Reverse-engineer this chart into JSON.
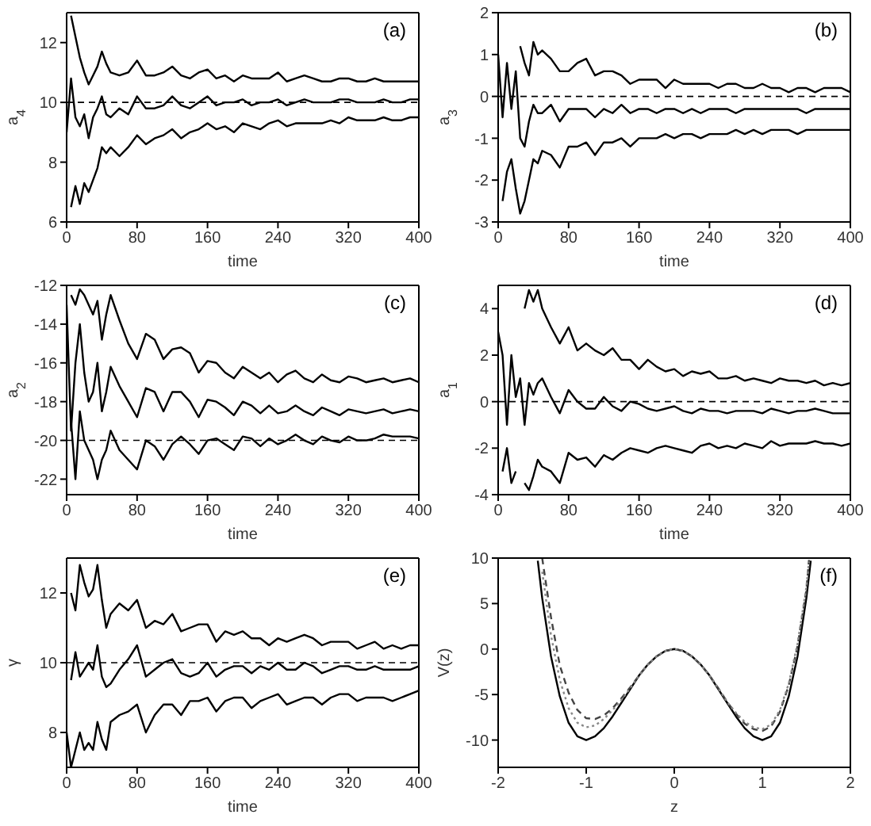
{
  "chart_data": [
    {
      "type": "line",
      "xlabel": "time",
      "ylabel": "a$_{4}$",
      "annotations": [
        "(a)"
      ],
      "xlim": [
        0,
        400
      ],
      "xticks": [
        0,
        80,
        160,
        240,
        320,
        400
      ],
      "ylim": [
        6,
        13
      ],
      "yticks": [
        6,
        8,
        10,
        12
      ],
      "ref_lines": [
        {
          "axis": "y",
          "value": 10,
          "line_style": "dashed",
          "color": "#000000"
        }
      ],
      "x": [
        0,
        5,
        10,
        15,
        20,
        25,
        30,
        35,
        40,
        45,
        50,
        60,
        70,
        80,
        90,
        100,
        110,
        120,
        130,
        140,
        150,
        160,
        170,
        180,
        190,
        200,
        210,
        220,
        230,
        240,
        250,
        260,
        270,
        280,
        290,
        300,
        310,
        320,
        330,
        340,
        350,
        360,
        370,
        380,
        390,
        400
      ],
      "series": [
        {
          "color": "#000000",
          "values": [
            null,
            12.9,
            12.2,
            11.5,
            11.0,
            10.6,
            10.9,
            11.2,
            11.7,
            11.3,
            11.0,
            10.9,
            11.0,
            11.4,
            10.9,
            10.9,
            11.0,
            11.2,
            10.9,
            10.8,
            11.0,
            11.1,
            10.8,
            10.9,
            10.7,
            10.9,
            10.8,
            10.8,
            10.8,
            11.0,
            10.7,
            10.8,
            10.9,
            10.8,
            10.7,
            10.7,
            10.8,
            10.8,
            10.7,
            10.7,
            10.8,
            10.7,
            10.7,
            10.7,
            10.7,
            10.7
          ]
        },
        {
          "color": "#000000",
          "values": [
            9.0,
            10.8,
            9.5,
            9.2,
            9.6,
            8.8,
            9.5,
            9.8,
            10.2,
            9.6,
            9.5,
            9.8,
            9.6,
            10.2,
            9.8,
            9.8,
            9.9,
            10.2,
            9.9,
            9.8,
            10.0,
            10.2,
            9.9,
            10.0,
            10.0,
            10.1,
            9.9,
            10.0,
            10.0,
            10.1,
            9.9,
            10.0,
            10.1,
            10.0,
            10.0,
            10.0,
            10.1,
            10.1,
            10.0,
            10.0,
            10.0,
            10.1,
            10.0,
            10.0,
            10.1,
            10.1
          ]
        },
        {
          "color": "#000000",
          "values": [
            null,
            6.5,
            7.2,
            6.6,
            7.3,
            7.0,
            7.4,
            7.8,
            8.5,
            8.3,
            8.5,
            8.2,
            8.5,
            8.9,
            8.6,
            8.8,
            8.9,
            9.1,
            8.8,
            9.0,
            9.1,
            9.3,
            9.1,
            9.2,
            9.0,
            9.3,
            9.2,
            9.1,
            9.3,
            9.4,
            9.2,
            9.3,
            9.3,
            9.3,
            9.3,
            9.4,
            9.3,
            9.5,
            9.4,
            9.4,
            9.4,
            9.5,
            9.4,
            9.4,
            9.5,
            9.5
          ]
        }
      ]
    },
    {
      "type": "line",
      "xlabel": "time",
      "ylabel": "a$_{3}$",
      "annotations": [
        "(b)"
      ],
      "xlim": [
        0,
        400
      ],
      "xticks": [
        0,
        80,
        160,
        240,
        320,
        400
      ],
      "ylim": [
        -3,
        2
      ],
      "yticks": [
        -3,
        -2,
        -1,
        0,
        1,
        2
      ],
      "ref_lines": [
        {
          "axis": "y",
          "value": 0,
          "line_style": "dashed",
          "color": "#000000"
        }
      ],
      "x": [
        0,
        5,
        10,
        15,
        20,
        25,
        30,
        35,
        40,
        45,
        50,
        60,
        70,
        80,
        90,
        100,
        110,
        120,
        130,
        140,
        150,
        160,
        170,
        180,
        190,
        200,
        210,
        220,
        230,
        240,
        250,
        260,
        270,
        280,
        290,
        300,
        310,
        320,
        330,
        340,
        350,
        360,
        370,
        380,
        390,
        400
      ],
      "series": [
        {
          "color": "#000000",
          "values": [
            null,
            null,
            null,
            null,
            null,
            1.2,
            0.8,
            0.5,
            1.3,
            1.0,
            1.1,
            0.9,
            0.6,
            0.6,
            0.8,
            0.9,
            0.5,
            0.6,
            0.6,
            0.5,
            0.3,
            0.4,
            0.4,
            0.4,
            0.2,
            0.4,
            0.3,
            0.3,
            0.3,
            0.3,
            0.2,
            0.3,
            0.3,
            0.2,
            0.2,
            0.3,
            0.2,
            0.2,
            0.1,
            0.2,
            0.2,
            0.1,
            0.2,
            0.2,
            0.2,
            0.1
          ]
        },
        {
          "color": "#000000",
          "values": [
            1,
            -0.5,
            0.8,
            -0.3,
            0.6,
            -1.0,
            -1.2,
            -0.6,
            -0.2,
            -0.4,
            -0.4,
            -0.2,
            -0.6,
            -0.3,
            -0.3,
            -0.3,
            -0.5,
            -0.3,
            -0.4,
            -0.2,
            -0.4,
            -0.3,
            -0.3,
            -0.4,
            -0.3,
            -0.3,
            -0.4,
            -0.3,
            -0.4,
            -0.3,
            -0.3,
            -0.3,
            -0.4,
            -0.3,
            -0.3,
            -0.3,
            -0.3,
            -0.3,
            -0.3,
            -0.3,
            -0.4,
            -0.3,
            -0.3,
            -0.3,
            -0.3,
            -0.3
          ]
        },
        {
          "color": "#000000",
          "values": [
            null,
            -2.5,
            -1.8,
            -1.5,
            -2.2,
            -2.8,
            -2.5,
            -2.0,
            -1.5,
            -1.6,
            -1.3,
            -1.4,
            -1.7,
            -1.2,
            -1.2,
            -1.1,
            -1.4,
            -1.1,
            -1.1,
            -1.0,
            -1.2,
            -1.0,
            -1.0,
            -1.0,
            -0.9,
            -1.0,
            -0.9,
            -0.9,
            -1.0,
            -0.9,
            -0.9,
            -0.9,
            -0.8,
            -0.9,
            -0.8,
            -0.9,
            -0.8,
            -0.8,
            -0.8,
            -0.9,
            -0.8,
            -0.8,
            -0.8,
            -0.8,
            -0.8,
            -0.8
          ]
        }
      ]
    },
    {
      "type": "line",
      "xlabel": "time",
      "ylabel": "a$_{2}$",
      "annotations": [
        "(c)"
      ],
      "xlim": [
        0,
        400
      ],
      "xticks": [
        0,
        80,
        160,
        240,
        320,
        400
      ],
      "ylim": [
        -22.8,
        -12
      ],
      "yticks": [
        -22,
        -20,
        -18,
        -16,
        -14,
        -12
      ],
      "ref_lines": [
        {
          "axis": "y",
          "value": -20,
          "line_style": "dashed",
          "color": "#000000"
        }
      ],
      "x": [
        0,
        5,
        10,
        15,
        20,
        25,
        30,
        35,
        40,
        45,
        50,
        60,
        70,
        80,
        90,
        100,
        110,
        120,
        130,
        140,
        150,
        160,
        170,
        180,
        190,
        200,
        210,
        220,
        230,
        240,
        250,
        260,
        270,
        280,
        290,
        300,
        310,
        320,
        330,
        340,
        350,
        360,
        370,
        380,
        390,
        400
      ],
      "series": [
        {
          "color": "#000000",
          "values": [
            null,
            -12.5,
            -13,
            -12.2,
            -12.5,
            -13,
            -13.5,
            -12.8,
            -14.8,
            -13.5,
            -12.5,
            -13.8,
            -15,
            -15.8,
            -14.5,
            -14.8,
            -15.8,
            -15.3,
            -15.2,
            -15.5,
            -16.5,
            -15.9,
            -16.0,
            -16.5,
            -16.8,
            -16.2,
            -16.5,
            -16.8,
            -16.5,
            -17.0,
            -16.6,
            -16.4,
            -16.8,
            -17.0,
            -16.6,
            -16.9,
            -17.0,
            -16.7,
            -16.8,
            -17.0,
            -16.9,
            -16.8,
            -17.0,
            -16.9,
            -16.8,
            -17.0
          ]
        },
        {
          "color": "#000000",
          "values": [
            -13,
            -19.5,
            -16,
            -14,
            -16.5,
            -18,
            -17.5,
            -16,
            -18.5,
            -17.5,
            -16.2,
            -17.2,
            -18,
            -18.8,
            -17.3,
            -17.5,
            -18.5,
            -17.5,
            -17.5,
            -18,
            -18.8,
            -17.9,
            -18.0,
            -18.3,
            -18.7,
            -18.0,
            -18.2,
            -18.6,
            -18.2,
            -18.6,
            -18.5,
            -18.2,
            -18.5,
            -18.7,
            -18.3,
            -18.5,
            -18.7,
            -18.4,
            -18.5,
            -18.6,
            -18.5,
            -18.4,
            -18.6,
            -18.5,
            -18.4,
            -18.5
          ]
        },
        {
          "color": "#000000",
          "values": [
            null,
            -19,
            -22,
            -18.5,
            -20,
            -20.5,
            -21,
            -22,
            -21,
            -20.5,
            -19.5,
            -20.5,
            -21.0,
            -21.5,
            -20.0,
            -20.3,
            -21.0,
            -20.2,
            -19.8,
            -20.2,
            -20.7,
            -20.0,
            -19.9,
            -20.2,
            -20.5,
            -19.8,
            -19.9,
            -20.3,
            -19.9,
            -20.2,
            -20.0,
            -19.7,
            -20.0,
            -20.2,
            -19.8,
            -20.0,
            -20.1,
            -19.8,
            -20.0,
            -20.0,
            -19.9,
            -19.7,
            -19.8,
            -19.8,
            -19.8,
            -19.9
          ]
        }
      ]
    },
    {
      "type": "line",
      "xlabel": "time",
      "ylabel": "a$_{1}$",
      "annotations": [
        "(d)"
      ],
      "xlim": [
        0,
        400
      ],
      "xticks": [
        0,
        80,
        160,
        240,
        320,
        400
      ],
      "ylim": [
        -4,
        5
      ],
      "yticks": [
        -4,
        -2,
        0,
        2,
        4
      ],
      "ref_lines": [
        {
          "axis": "y",
          "value": 0,
          "line_style": "dashed",
          "color": "#000000"
        }
      ],
      "x": [
        0,
        5,
        10,
        15,
        20,
        25,
        30,
        35,
        40,
        45,
        50,
        60,
        70,
        80,
        90,
        100,
        110,
        120,
        130,
        140,
        150,
        160,
        170,
        180,
        190,
        200,
        210,
        220,
        230,
        240,
        250,
        260,
        270,
        280,
        290,
        300,
        310,
        320,
        330,
        340,
        350,
        360,
        370,
        380,
        390,
        400
      ],
      "series": [
        {
          "color": "#000000",
          "values": [
            null,
            null,
            null,
            null,
            null,
            null,
            4,
            4.8,
            4.3,
            4.8,
            4.0,
            3.2,
            2.5,
            3.2,
            2.2,
            2.5,
            2.2,
            2.0,
            2.3,
            1.8,
            1.8,
            1.4,
            1.8,
            1.5,
            1.3,
            1.4,
            1.1,
            1.3,
            1.2,
            1.3,
            1.0,
            1.0,
            1.1,
            0.9,
            1.0,
            0.9,
            0.8,
            1.0,
            0.9,
            0.9,
            0.8,
            0.9,
            0.7,
            0.8,
            0.7,
            0.8
          ]
        },
        {
          "color": "#000000",
          "values": [
            3,
            2.0,
            -1,
            2.0,
            0.2,
            1.0,
            -1.0,
            0.8,
            0.3,
            0.8,
            1.0,
            0.2,
            -0.5,
            0.5,
            0.0,
            -0.3,
            -0.3,
            0.2,
            -0.2,
            -0.4,
            0.0,
            -0.1,
            -0.3,
            -0.4,
            -0.3,
            -0.2,
            -0.4,
            -0.5,
            -0.3,
            -0.4,
            -0.4,
            -0.5,
            -0.4,
            -0.4,
            -0.4,
            -0.5,
            -0.3,
            -0.4,
            -0.5,
            -0.4,
            -0.4,
            -0.3,
            -0.4,
            -0.5,
            -0.5,
            -0.5
          ]
        },
        {
          "color": "#000000",
          "values": [
            null,
            -3,
            -2,
            -3.5,
            -3,
            null,
            -3.5,
            -3.8,
            -3.2,
            -2.5,
            -2.8,
            -3.0,
            -3.5,
            -2.2,
            -2.5,
            -2.4,
            -2.8,
            -2.3,
            -2.5,
            -2.2,
            -2.0,
            -2.1,
            -2.2,
            -2.0,
            -1.9,
            -2.0,
            -2.1,
            -2.2,
            -1.9,
            -1.8,
            -2.0,
            -1.9,
            -2.0,
            -1.8,
            -1.9,
            -2.0,
            -1.7,
            -1.9,
            -1.8,
            -1.8,
            -1.8,
            -1.7,
            -1.8,
            -1.8,
            -1.9,
            -1.8
          ]
        }
      ]
    },
    {
      "type": "line",
      "xlabel": "time",
      "ylabel": "γ",
      "annotations": [
        "(e)"
      ],
      "xlim": [
        0,
        400
      ],
      "xticks": [
        0,
        80,
        160,
        240,
        320,
        400
      ],
      "ylim": [
        7,
        13
      ],
      "yticks": [
        8,
        10,
        12
      ],
      "ref_lines": [
        {
          "axis": "y",
          "value": 10,
          "line_style": "dashed",
          "color": "#000000"
        }
      ],
      "x": [
        0,
        5,
        10,
        15,
        20,
        25,
        30,
        35,
        40,
        45,
        50,
        60,
        70,
        80,
        90,
        100,
        110,
        120,
        130,
        140,
        150,
        160,
        170,
        180,
        190,
        200,
        210,
        220,
        230,
        240,
        250,
        260,
        270,
        280,
        290,
        300,
        310,
        320,
        330,
        340,
        350,
        360,
        370,
        380,
        390,
        400
      ],
      "series": [
        {
          "color": "#000000",
          "values": [
            null,
            12,
            11.5,
            12.8,
            12.3,
            11.9,
            12.1,
            12.8,
            11.8,
            11.0,
            11.4,
            11.7,
            11.5,
            11.8,
            11.0,
            11.2,
            11.1,
            11.4,
            10.9,
            11.0,
            11.1,
            11.1,
            10.6,
            10.9,
            10.8,
            10.9,
            10.7,
            10.7,
            10.5,
            10.7,
            10.6,
            10.7,
            10.8,
            10.7,
            10.5,
            10.6,
            10.6,
            10.6,
            10.4,
            10.5,
            10.6,
            10.4,
            10.5,
            10.4,
            10.5,
            10.5
          ]
        },
        {
          "color": "#000000",
          "values": [
            null,
            9.5,
            10.3,
            9.6,
            9.8,
            10.0,
            9.8,
            10.5,
            9.6,
            9.3,
            9.4,
            9.8,
            10.1,
            10.5,
            9.6,
            9.8,
            10.0,
            10.1,
            9.7,
            9.6,
            9.7,
            10.0,
            9.6,
            9.8,
            9.9,
            9.9,
            9.7,
            9.9,
            9.8,
            10.0,
            9.8,
            9.8,
            10.0,
            9.9,
            9.7,
            9.8,
            9.9,
            9.9,
            9.8,
            9.8,
            9.9,
            9.8,
            9.8,
            9.8,
            9.8,
            9.9
          ]
        },
        {
          "color": "#000000",
          "values": [
            8,
            7,
            7.5,
            8.0,
            7.5,
            7.7,
            7.5,
            8.3,
            7.8,
            7.5,
            8.3,
            8.5,
            8.6,
            8.8,
            8.0,
            8.5,
            8.8,
            8.8,
            8.5,
            8.9,
            8.9,
            9.0,
            8.6,
            8.9,
            9.0,
            9.0,
            8.7,
            8.9,
            9.0,
            9.1,
            8.8,
            8.9,
            9.0,
            9.0,
            8.8,
            9.0,
            9.1,
            9.1,
            8.9,
            9.0,
            9.0,
            9.0,
            8.9,
            9.0,
            9.1,
            9.2
          ]
        }
      ]
    },
    {
      "type": "line",
      "xlabel": "z",
      "ylabel": "V(z)",
      "annotations": [
        "(f)"
      ],
      "xlim": [
        -2,
        2
      ],
      "xticks": [
        -2,
        -1,
        0,
        1,
        2
      ],
      "ylim": [
        -13,
        10
      ],
      "yticks": [
        -10,
        -5,
        0,
        5,
        10
      ],
      "series": [
        {
          "color": "#000000",
          "line_style": "solid",
          "x": [
            -1.55,
            -1.5,
            -1.4,
            -1.3,
            -1.2,
            -1.1,
            -1.0,
            -0.9,
            -0.8,
            -0.7,
            -0.6,
            -0.5,
            -0.4,
            -0.3,
            -0.2,
            -0.1,
            0,
            0.1,
            0.2,
            0.3,
            0.4,
            0.5,
            0.6,
            0.7,
            0.8,
            0.9,
            1.0,
            1.1,
            1.2,
            1.3,
            1.4,
            1.5,
            1.55
          ],
          "values": [
            9.7,
            5.6,
            -0.8,
            -5.2,
            -8.1,
            -9.6,
            -10,
            -9.6,
            -8.7,
            -7.4,
            -5.9,
            -4.4,
            -2.9,
            -1.7,
            -0.8,
            -0.2,
            0,
            -0.2,
            -0.8,
            -1.7,
            -2.9,
            -4.4,
            -5.9,
            -7.4,
            -8.7,
            -9.6,
            -10,
            -9.6,
            -8.1,
            -5.2,
            -0.8,
            5.6,
            9.7
          ]
        },
        {
          "color": "#444444",
          "line_style": "dashed",
          "x": [
            -1.5,
            -1.4,
            -1.3,
            -1.2,
            -1.1,
            -1.0,
            -0.9,
            -0.8,
            -0.7,
            -0.6,
            -0.5,
            -0.4,
            -0.3,
            -0.2,
            -0.1,
            0,
            0.1,
            0.2,
            0.3,
            0.4,
            0.5,
            0.6,
            0.7,
            0.8,
            0.9,
            1.0,
            1.1,
            1.2,
            1.3,
            1.4,
            1.5,
            1.53
          ],
          "values": [
            10,
            3.5,
            -1.8,
            -4.8,
            -6.7,
            -7.6,
            -7.7,
            -7.3,
            -6.5,
            -5.4,
            -4.2,
            -2.9,
            -1.7,
            -0.8,
            -0.2,
            0,
            -0.2,
            -0.8,
            -1.7,
            -2.9,
            -4.3,
            -5.8,
            -7.1,
            -8.2,
            -8.8,
            -9.0,
            -8.5,
            -6.9,
            -4.0,
            0.3,
            6.5,
            9.8
          ]
        },
        {
          "color": "#888888",
          "line_style": "dotted",
          "x": [
            -1.5,
            -1.4,
            -1.3,
            -1.2,
            -1.1,
            -1.0,
            -0.9,
            -0.8,
            -0.7,
            -0.6,
            -0.5,
            -0.4,
            -0.3,
            -0.2,
            -0.1,
            0,
            0.1,
            0.2,
            0.3,
            0.4,
            0.5,
            0.6,
            0.7,
            0.8,
            0.9,
            1.0,
            1.1,
            1.2,
            1.3,
            1.4,
            1.5,
            1.53
          ],
          "values": [
            8.5,
            1.5,
            -3.4,
            -6.5,
            -8.1,
            -8.6,
            -8.4,
            -7.7,
            -6.7,
            -5.6,
            -4.3,
            -2.9,
            -1.7,
            -0.8,
            -0.2,
            0,
            -0.2,
            -0.8,
            -1.7,
            -2.9,
            -4.3,
            -5.8,
            -7.0,
            -8.0,
            -8.6,
            -8.8,
            -8.3,
            -6.7,
            -3.8,
            0.6,
            6.8,
            9.6
          ]
        }
      ]
    }
  ]
}
